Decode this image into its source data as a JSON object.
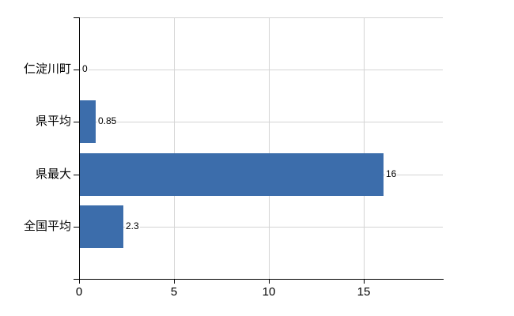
{
  "chart_data": {
    "type": "bar",
    "orientation": "horizontal",
    "title": "",
    "xlabel": "",
    "ylabel": "",
    "categories": [
      "仁淀川町",
      "県平均",
      "県最大",
      "全国平均"
    ],
    "values": [
      0,
      0.85,
      16,
      2.3
    ],
    "value_labels": [
      "0",
      "0.85",
      "16",
      "2.3"
    ],
    "xticks": [
      0,
      5,
      10,
      15
    ],
    "xtick_labels": [
      "0",
      "5",
      "10",
      "15"
    ],
    "xlim": [
      0,
      19.2
    ],
    "grid": "on",
    "legend": "none",
    "bar_color": "#3c6dab",
    "grid_color": "#d4d4d4",
    "axis_color": "#000000",
    "text_color": "#000000",
    "background_color": "#ffffff"
  }
}
